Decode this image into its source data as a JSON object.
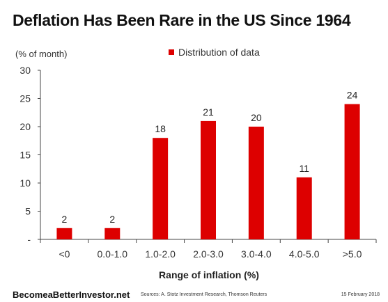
{
  "chart_data": {
    "type": "bar",
    "title": "Deflation Has Been Rare in the US Since 1964",
    "unit_label": "(% of month)",
    "xlabel": "Range of inflation (%)",
    "ylabel": "",
    "ylim": [
      0,
      30
    ],
    "yticks": [
      "-",
      "5",
      "10",
      "15",
      "20",
      "25",
      "30"
    ],
    "grid": false,
    "legend_position": "top",
    "categories": [
      "<0",
      "0.0-1.0",
      "1.0-2.0",
      "2.0-3.0",
      "3.0-4.0",
      "4.0-5.0",
      ">5.0"
    ],
    "series": [
      {
        "name": "Distribution of data",
        "values": [
          2,
          2,
          18,
          21,
          20,
          11,
          24
        ],
        "labels": [
          "2",
          "2",
          "18",
          "21",
          "20",
          "11",
          "24"
        ],
        "color": "#dd0000"
      }
    ]
  },
  "footer": {
    "brand": "BecomeaBetterInvestor.net",
    "sources": "Sources: A. Stotz Investment Research, Thomson Reuters",
    "date": "15 February 2018"
  }
}
